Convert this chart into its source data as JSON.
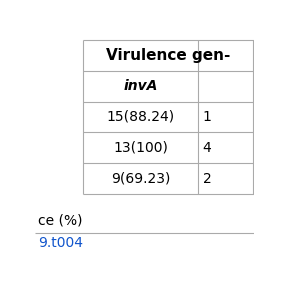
{
  "header_text": "Virulence gen-",
  "subheader_text": "invA",
  "data_rows": [
    [
      "15(88.24)",
      "1"
    ],
    [
      "13(100)",
      "4"
    ],
    [
      "9(69.23)",
      "2"
    ]
  ],
  "footer_text": "ce (%)",
  "link_text": "9.t004",
  "background_color": "#ffffff",
  "border_color": "#aaaaaa",
  "text_color": "#000000",
  "link_color": "#1155cc",
  "header_font_size": 11,
  "body_font_size": 10
}
